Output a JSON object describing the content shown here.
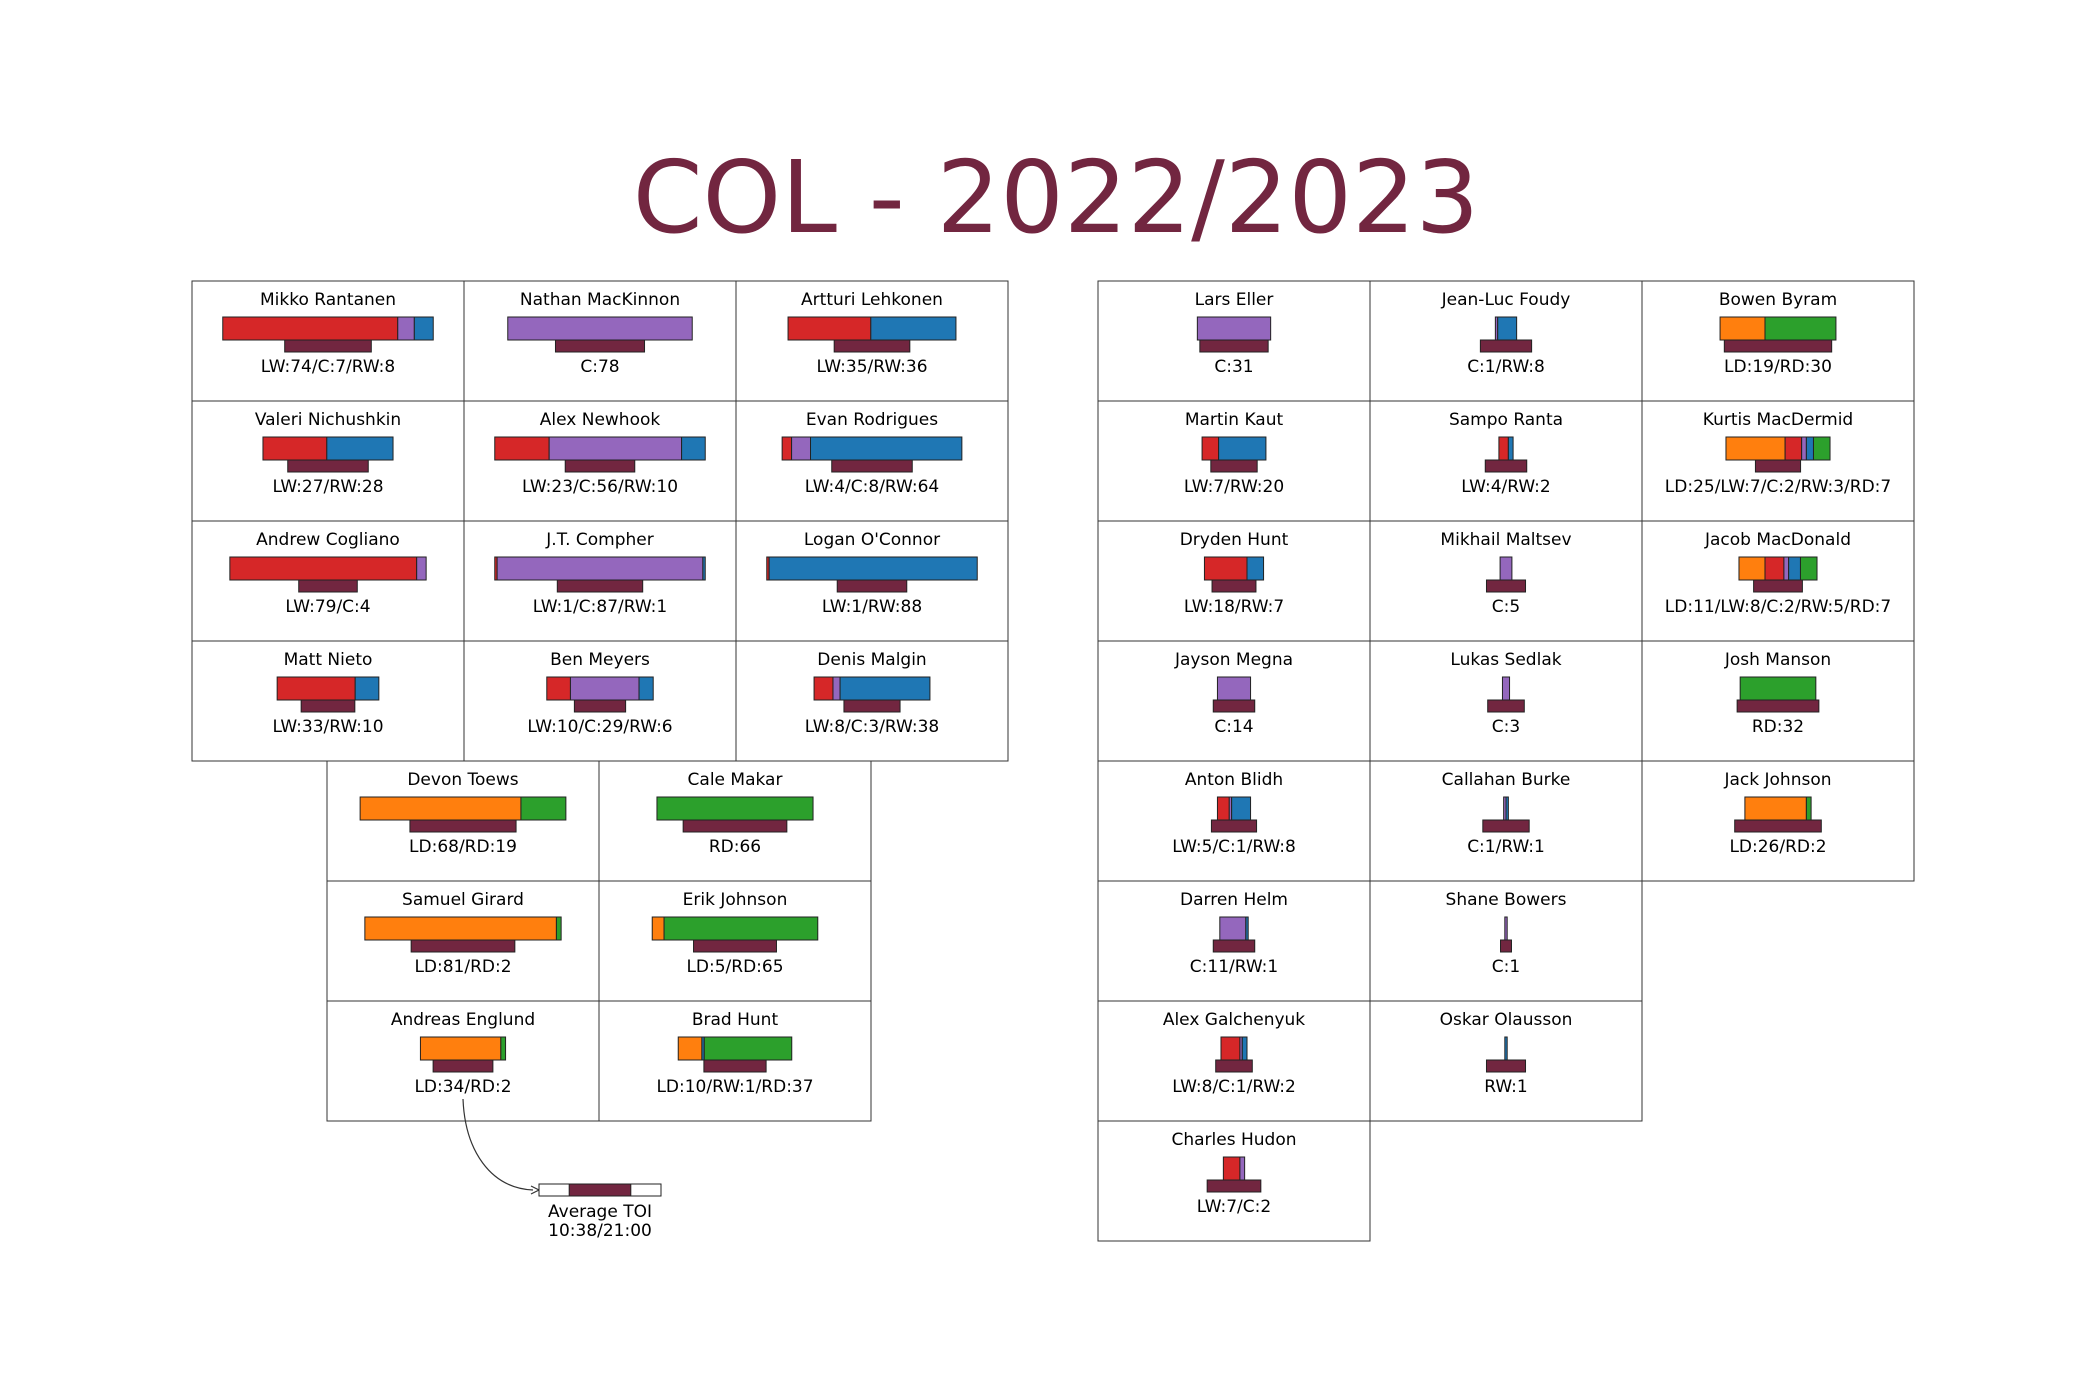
{
  "chart_data": {
    "type": "bar",
    "title": "COL - 2022/2023",
    "position_colors": {
      "LW": "#d62728",
      "C": "#9467bd",
      "RW": "#1f77b4",
      "LD": "#ff7f0e",
      "RD": "#2ca02c"
    },
    "toi_color": "#722640",
    "text_color": "#722640",
    "legend_example": {
      "label": "Average TOI",
      "value": "10:38/21:00",
      "fraction": 0.505
    },
    "players": [
      {
        "name": "Mikko Rantanen",
        "games": {
          "LW": 74,
          "C": 7,
          "RW": 8
        },
        "label": "LW:74/C:7/RW:8",
        "toi_frac": 0.71
      },
      {
        "name": "Nathan MacKinnon",
        "games": {
          "C": 78
        },
        "label": "C:78",
        "toi_frac": 0.73
      },
      {
        "name": "Artturi Lehkonen",
        "games": {
          "LW": 35,
          "RW": 36
        },
        "label": "LW:35/RW:36",
        "toi_frac": 0.62
      },
      {
        "name": "Valeri Nichushkin",
        "games": {
          "LW": 27,
          "RW": 28
        },
        "label": "LW:27/RW:28",
        "toi_frac": 0.66
      },
      {
        "name": "Alex Newhook",
        "games": {
          "LW": 23,
          "C": 56,
          "RW": 10
        },
        "label": "LW:23/C:56/RW:10",
        "toi_frac": 0.57
      },
      {
        "name": "Evan Rodrigues",
        "games": {
          "LW": 4,
          "C": 8,
          "RW": 64
        },
        "label": "LW:4/C:8/RW:64",
        "toi_frac": 0.66
      },
      {
        "name": "Andrew Cogliano",
        "games": {
          "LW": 79,
          "C": 4
        },
        "label": "LW:79/C:4",
        "toi_frac": 0.48
      },
      {
        "name": "J.T. Compher",
        "games": {
          "LW": 1,
          "C": 87,
          "RW": 1
        },
        "label": "LW:1/C:87/RW:1",
        "toi_frac": 0.7
      },
      {
        "name": "Logan O'Connor",
        "games": {
          "LW": 1,
          "RW": 88
        },
        "label": "LW:1/RW:88",
        "toi_frac": 0.57
      },
      {
        "name": "Matt Nieto",
        "games": {
          "LW": 33,
          "RW": 10
        },
        "label": "LW:33/RW:10",
        "toi_frac": 0.44
      },
      {
        "name": "Ben Meyers",
        "games": {
          "LW": 10,
          "C": 29,
          "RW": 6
        },
        "label": "LW:10/C:29/RW:6",
        "toi_frac": 0.42
      },
      {
        "name": "Denis Malgin",
        "games": {
          "LW": 8,
          "C": 3,
          "RW": 38
        },
        "label": "LW:8/C:3/RW:38",
        "toi_frac": 0.46
      },
      {
        "name": "Devon Toews",
        "games": {
          "LD": 68,
          "RD": 19
        },
        "label": "LD:68/RD:19",
        "toi_frac": 0.87
      },
      {
        "name": "Cale Makar",
        "games": {
          "RD": 66
        },
        "label": "RD:66",
        "toi_frac": 0.85
      },
      {
        "name": "Samuel Girard",
        "games": {
          "LD": 81,
          "RD": 2
        },
        "label": "LD:81/RD:2",
        "toi_frac": 0.85
      },
      {
        "name": "Erik Johnson",
        "games": {
          "LD": 5,
          "RD": 65
        },
        "label": "LD:5/RD:65",
        "toi_frac": 0.68
      },
      {
        "name": "Andreas Englund",
        "games": {
          "LD": 34,
          "RD": 2
        },
        "label": "LD:34/RD:2",
        "toi_frac": 0.49
      },
      {
        "name": "Brad Hunt",
        "games": {
          "LD": 10,
          "RW": 1,
          "RD": 37
        },
        "label": "LD:10/RW:1/RD:37",
        "toi_frac": 0.51
      },
      {
        "name": "Lars Eller",
        "games": {
          "C": 31
        },
        "label": "C:31",
        "toi_frac": 0.56
      },
      {
        "name": "Jean-Luc Foudy",
        "games": {
          "C": 1,
          "RW": 8
        },
        "label": "C:1/RW:8",
        "toi_frac": 0.42
      },
      {
        "name": "Bowen Byram",
        "games": {
          "LD": 19,
          "RD": 30
        },
        "label": "LD:19/RD:30",
        "toi_frac": 0.88
      },
      {
        "name": "Martin Kaut",
        "games": {
          "LW": 7,
          "RW": 20
        },
        "label": "LW:7/RW:20",
        "toi_frac": 0.38
      },
      {
        "name": "Sampo Ranta",
        "games": {
          "LW": 4,
          "RW": 2
        },
        "label": "LW:4/RW:2",
        "toi_frac": 0.34
      },
      {
        "name": "Kurtis MacDermid",
        "games": {
          "LD": 25,
          "LW": 7,
          "C": 2,
          "RW": 3,
          "RD": 7
        },
        "label": "LD:25/LW:7/C:2/RW:3/RD:7",
        "toi_frac": 0.37
      },
      {
        "name": "Dryden Hunt",
        "games": {
          "LW": 18,
          "RW": 7
        },
        "label": "LW:18/RW:7",
        "toi_frac": 0.36
      },
      {
        "name": "Mikhail Maltsev",
        "games": {
          "C": 5
        },
        "label": "C:5",
        "toi_frac": 0.32
      },
      {
        "name": "Jacob MacDonald",
        "games": {
          "LD": 11,
          "LW": 8,
          "C": 2,
          "RW": 5,
          "RD": 7
        },
        "label": "LD:11/LW:8/C:2/RW:5/RD:7",
        "toi_frac": 0.4
      },
      {
        "name": "Jayson Megna",
        "games": {
          "C": 14
        },
        "label": "C:14",
        "toi_frac": 0.34
      },
      {
        "name": "Lukas Sedlak",
        "games": {
          "C": 3
        },
        "label": "C:3",
        "toi_frac": 0.3
      },
      {
        "name": "Josh Manson",
        "games": {
          "RD": 32
        },
        "label": "RD:32",
        "toi_frac": 0.67
      },
      {
        "name": "Anton Blidh",
        "games": {
          "LW": 5,
          "C": 1,
          "RW": 8
        },
        "label": "LW:5/C:1/RW:8",
        "toi_frac": 0.37
      },
      {
        "name": "Callahan Burke",
        "games": {
          "C": 1,
          "RW": 1
        },
        "label": "C:1/RW:1",
        "toi_frac": 0.38
      },
      {
        "name": "Jack Johnson",
        "games": {
          "LD": 26,
          "RD": 2
        },
        "label": "LD:26/RD:2",
        "toi_frac": 0.71
      },
      {
        "name": "Darren Helm",
        "games": {
          "C": 11,
          "RW": 1
        },
        "label": "C:11/RW:1",
        "toi_frac": 0.34
      },
      {
        "name": "Shane Bowers",
        "games": {
          "C": 1
        },
        "label": "C:1",
        "toi_frac": 0.09
      },
      {
        "name": "Alex Galchenyuk",
        "games": {
          "LW": 8,
          "C": 1,
          "RW": 2
        },
        "label": "LW:8/C:1/RW:2",
        "toi_frac": 0.3
      },
      {
        "name": "Oskar Olausson",
        "games": {
          "RW": 1
        },
        "label": "RW:1",
        "toi_frac": 0.32
      },
      {
        "name": "Charles Hudon",
        "games": {
          "LW": 7,
          "C": 2
        },
        "label": "LW:7/C:2",
        "toi_frac": 0.44
      }
    ]
  }
}
